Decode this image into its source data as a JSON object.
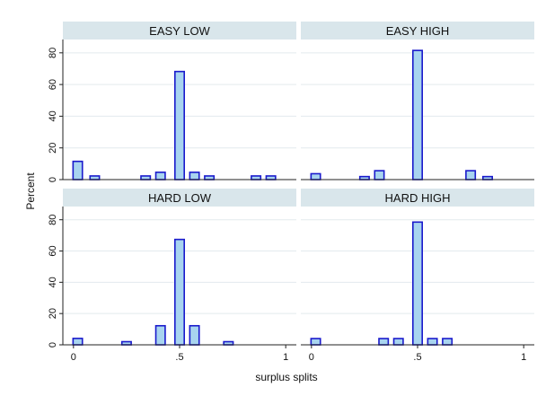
{
  "chart_data": {
    "type": "bar",
    "ylabel": "Percent",
    "xlabel": "surplus splits",
    "xlim": [
      -0.05,
      1.05
    ],
    "ylim": [
      0,
      85
    ],
    "xticks": [
      {
        "value": 0,
        "label": "0"
      },
      {
        "value": 0.5,
        "label": ".5"
      },
      {
        "value": 1,
        "label": "1"
      }
    ],
    "yticks": [
      {
        "value": 0,
        "label": "0"
      },
      {
        "value": 20,
        "label": "20"
      },
      {
        "value": 40,
        "label": "40"
      },
      {
        "value": 60,
        "label": "60"
      },
      {
        "value": 80,
        "label": "80"
      }
    ],
    "bar_width": 0.044,
    "bar_fill": "#a8d4ef",
    "bar_stroke": "#1a1acc",
    "strip_fill": "#d9e6eb",
    "grid_color": "#e3eaee",
    "grid": true,
    "panels": [
      {
        "title": "EASY LOW",
        "x": [
          0.02,
          0.1,
          0.34,
          0.41,
          0.5,
          0.57,
          0.64,
          0.86,
          0.93
        ],
        "values": [
          11.5,
          2.3,
          2.3,
          4.6,
          68.2,
          4.6,
          2.3,
          2.3,
          2.3
        ]
      },
      {
        "title": "EASY HIGH",
        "x": [
          0.02,
          0.25,
          0.32,
          0.5,
          0.75,
          0.83
        ],
        "values": [
          3.7,
          1.9,
          5.6,
          81.5,
          5.6,
          1.9
        ]
      },
      {
        "title": "HARD LOW",
        "x": [
          0.02,
          0.25,
          0.41,
          0.5,
          0.57,
          0.73
        ],
        "values": [
          4.1,
          2.0,
          12.2,
          67.4,
          12.2,
          2.0
        ]
      },
      {
        "title": "HARD HIGH",
        "x": [
          0.02,
          0.34,
          0.41,
          0.5,
          0.57,
          0.64
        ],
        "values": [
          4.0,
          4.0,
          4.0,
          78.5,
          4.0,
          4.0
        ]
      }
    ]
  }
}
